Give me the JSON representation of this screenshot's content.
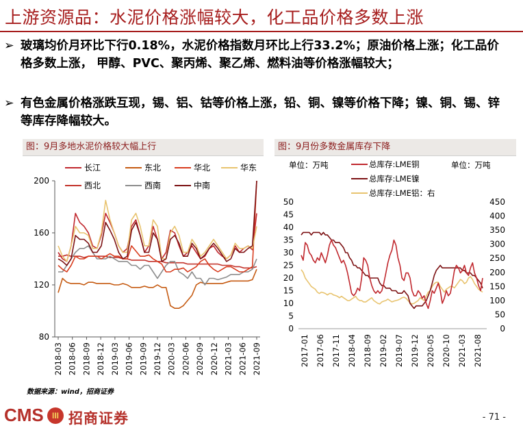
{
  "header": {
    "title": "上游资源品：水泥价格涨幅较大，化工品价格多数上涨"
  },
  "bullets": [
    {
      "marker": "➢",
      "text": "玻璃均价月环比下行0.18%，水泥价格指数月环比上行33.2%；原油价格上涨；化工品价格多数上涨， 甲醇、PVC、聚丙烯、聚乙烯、燃料油等价格涨幅较大；"
    },
    {
      "marker": "➢",
      "text": "有色金属价格涨跌互现，锡、铝、钴等价格上涨，铅、铜、镍等价格下降；镍、铜、锡、锌等库存降幅较大。"
    }
  ],
  "panels": {
    "left_title": "图：9月多地水泥价格较大幅上行",
    "right_title": "图：9月份多数金属库存下降"
  },
  "colors": {
    "brand_red": "#a61c1c",
    "changjiang": "#c0272d",
    "dongbei": "#c55a11",
    "huabei": "#d83b1d",
    "huadong": "#e8c36e",
    "xibei": "#c3322a",
    "xinan": "#8c8c8c",
    "zhongnan": "#7b1012",
    "lme_cu": "#c0272d",
    "lme_ni": "#7b1012",
    "lme_al": "#e8c36e"
  },
  "chart_data": [
    {
      "type": "line",
      "title": "图：9月多地水泥价格较大幅上行",
      "ylim": [
        80,
        200
      ],
      "yticks": [
        "80",
        "120",
        "160",
        "200"
      ],
      "xticks": [
        "2018-03",
        "2018-06",
        "2018-09",
        "2018-12",
        "2019-03",
        "2019-06",
        "2019-09",
        "2019-12",
        "2020-03",
        "2020-06",
        "2020-09",
        "2020-12",
        "2021-03",
        "2021-06",
        "2021-09"
      ],
      "x_start": "2018-03",
      "x_end": "2021-09",
      "legend": [
        "长江",
        "东北",
        "华北",
        "华东",
        "西北",
        "西南",
        "中南"
      ],
      "series": [
        {
          "name": "长江",
          "color": "#c0272d",
          "values": [
            145,
            140,
            138,
            150,
            175,
            168,
            165,
            160,
            150,
            148,
            158,
            175,
            168,
            160,
            150,
            145,
            148,
            165,
            170,
            158,
            145,
            150,
            165,
            155,
            140,
            145,
            162,
            160,
            150,
            142,
            145,
            150,
            145,
            140,
            142,
            148,
            150,
            145,
            142,
            140,
            143,
            150,
            145,
            148,
            150,
            147,
            175
          ]
        },
        {
          "name": "东北",
          "color": "#c55a11",
          "values": [
            114,
            125,
            122,
            121,
            121,
            121,
            120,
            122,
            122,
            121,
            121,
            121,
            121,
            120,
            120,
            121,
            120,
            118,
            118,
            118,
            119,
            118,
            118,
            120,
            118,
            118,
            104,
            102,
            102,
            104,
            108,
            112,
            120,
            122,
            121,
            121,
            121,
            121,
            121,
            122,
            123,
            123,
            123,
            123,
            123,
            124,
            132
          ]
        },
        {
          "name": "华北",
          "color": "#d83b1d",
          "values": [
            135,
            132,
            130,
            135,
            142,
            140,
            140,
            142,
            142,
            142,
            140,
            142,
            144,
            142,
            142,
            140,
            140,
            150,
            146,
            142,
            142,
            143,
            140,
            138,
            136,
            130,
            130,
            132,
            132,
            133,
            130,
            132,
            134,
            138,
            140,
            135,
            132,
            130,
            132,
            134,
            134,
            132,
            130,
            130,
            132,
            134,
            200
          ]
        },
        {
          "name": "华东",
          "color": "#e8c36e",
          "values": [
            150,
            142,
            138,
            150,
            165,
            160,
            160,
            158,
            148,
            148,
            160,
            185,
            170,
            160,
            150,
            145,
            145,
            170,
            175,
            165,
            150,
            150,
            170,
            165,
            140,
            140,
            160,
            165,
            158,
            145,
            145,
            155,
            150,
            142,
            145,
            150,
            155,
            150,
            145,
            140,
            143,
            152,
            148,
            148,
            150,
            148,
            165
          ]
        },
        {
          "name": "西北",
          "color": "#c3322a",
          "values": [
            142,
            142,
            143,
            142,
            142,
            142,
            141,
            142,
            142,
            142,
            142,
            142,
            141,
            141,
            141,
            140,
            140,
            139,
            139,
            139,
            139,
            138,
            138,
            138,
            138,
            137,
            137,
            137,
            137,
            137,
            136,
            136,
            136,
            136,
            136,
            136,
            136,
            136,
            135,
            135,
            135,
            134,
            134,
            133,
            133,
            133,
            134
          ]
        },
        {
          "name": "西南",
          "color": "#8c8c8c",
          "values": [
            130,
            130,
            135,
            140,
            145,
            148,
            148,
            150,
            145,
            140,
            140,
            140,
            142,
            140,
            138,
            138,
            138,
            135,
            135,
            132,
            135,
            135,
            130,
            125,
            130,
            135,
            138,
            138,
            130,
            128,
            125,
            130,
            125,
            125,
            120,
            125,
            125,
            124,
            125,
            126,
            128,
            128,
            128,
            130,
            130,
            132,
            140
          ]
        },
        {
          "name": "中南",
          "color": "#7b1012",
          "values": [
            140,
            138,
            135,
            140,
            158,
            155,
            155,
            152,
            145,
            145,
            150,
            168,
            162,
            155,
            145,
            140,
            142,
            162,
            168,
            158,
            145,
            145,
            160,
            155,
            138,
            140,
            155,
            158,
            152,
            142,
            142,
            152,
            148,
            140,
            143,
            148,
            152,
            148,
            143,
            138,
            140,
            148,
            145,
            145,
            148,
            150,
            200
          ]
        }
      ]
    },
    {
      "type": "line",
      "title": "图：9月份多数金属库存下降",
      "unit_left": "单位：万吨",
      "unit_right": "单位：万吨",
      "ylim_left": [
        0,
        50
      ],
      "ylim_right": [
        0,
        450
      ],
      "yticks_left": [
        "0",
        "5",
        "10",
        "15",
        "20",
        "25",
        "30",
        "35",
        "40",
        "45",
        "50"
      ],
      "yticks_right": [
        "0",
        "50",
        "100",
        "150",
        "200",
        "250",
        "300",
        "350",
        "400",
        "450"
      ],
      "xticks": [
        "2017-01",
        "2017-06",
        "2017-11",
        "2018-04",
        "2018-09",
        "2019-02",
        "2019-07",
        "2019-12",
        "2020-05",
        "2020-10",
        "2021-03",
        "2021-08"
      ],
      "x_start": "2017-01",
      "x_end": "2021-09",
      "legend": [
        "总库存:LME铜",
        "总库存:LME镍",
        "总库存:LME铝：右"
      ],
      "series": [
        {
          "name": "总库存:LME铜",
          "axis": "left",
          "color": "#c0272d",
          "values": [
            29,
            27,
            34,
            33,
            30,
            29,
            27,
            26,
            28,
            27,
            30,
            28,
            26,
            29,
            33,
            35,
            33,
            32,
            30,
            28,
            26,
            27,
            25,
            22,
            18,
            14,
            13,
            14,
            16,
            15,
            20,
            28,
            27,
            25,
            20,
            17,
            15,
            14,
            15,
            14,
            15,
            18,
            22,
            26,
            29,
            31,
            35,
            33,
            28,
            25,
            20,
            19,
            22,
            22,
            20,
            15,
            13,
            13,
            15,
            14,
            12,
            13,
            10,
            8,
            11,
            15,
            14,
            16,
            18,
            15,
            10,
            12,
            15,
            13,
            14,
            18,
            23,
            25,
            24,
            22,
            23,
            25,
            22,
            21,
            24,
            26,
            22,
            20,
            17,
            15,
            20
          ]
        },
        {
          "name": "总库存:LME镍",
          "axis": "left",
          "color": "#7b1012",
          "values": [
            37,
            38,
            38,
            38,
            38,
            37,
            38,
            38,
            38,
            38,
            37,
            38,
            37,
            37,
            36,
            35,
            35,
            34,
            34,
            34,
            33,
            32,
            30,
            30,
            28,
            27,
            25,
            25,
            24,
            24,
            23,
            22,
            21,
            21,
            20,
            20,
            20,
            20,
            20,
            18,
            17,
            17,
            16,
            16,
            16,
            15,
            15,
            15,
            14,
            14,
            14,
            15,
            14,
            13,
            10,
            9,
            8,
            9,
            9,
            9,
            9,
            10,
            11,
            13,
            15,
            18,
            21,
            23,
            24,
            25,
            24,
            24,
            24,
            24,
            24,
            24,
            24,
            24,
            24,
            24,
            23,
            23,
            22,
            22,
            22,
            21,
            21,
            20,
            19,
            18,
            16
          ]
        },
        {
          "name": "总库存:LME铝：右",
          "axis": "right",
          "color": "#e8c36e",
          "values": [
            210,
            200,
            180,
            170,
            160,
            150,
            145,
            140,
            130,
            125,
            130,
            128,
            125,
            120,
            125,
            125,
            120,
            118,
            115,
            110,
            115,
            110,
            105,
            100,
            100,
            105,
            110,
            115,
            105,
            100,
            100,
            95,
            95,
            100,
            105,
            110,
            100,
            95,
            90,
            88,
            95,
            98,
            100,
            105,
            100,
            95,
            98,
            100,
            102,
            105,
            110,
            112,
            108,
            100,
            92,
            88,
            90,
            95,
            100,
            110,
            105,
            100,
            115,
            130,
            135,
            150,
            160,
            165,
            165,
            150,
            140,
            130,
            140,
            145,
            150,
            150,
            145,
            155,
            165,
            175,
            170,
            160,
            165,
            180,
            185,
            175,
            160,
            150,
            140,
            135,
            130
          ]
        }
      ]
    }
  ],
  "source": {
    "label": "数据来源：wind，招商证券"
  },
  "footer": {
    "logo_text": "CMS",
    "logo_mark": "III",
    "company": "招商证券",
    "page": "- 71 -"
  }
}
